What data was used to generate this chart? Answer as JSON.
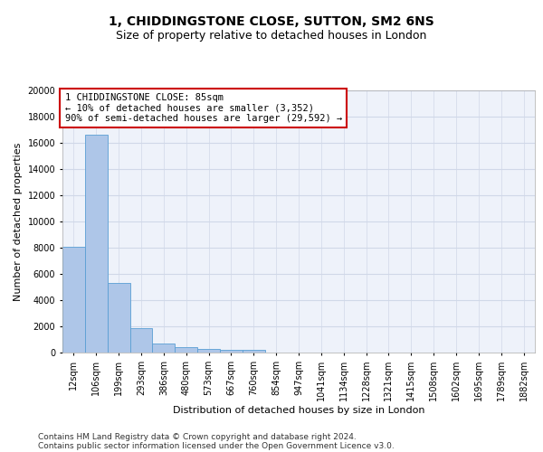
{
  "title": "1, CHIDDINGSTONE CLOSE, SUTTON, SM2 6NS",
  "subtitle": "Size of property relative to detached houses in London",
  "xlabel": "Distribution of detached houses by size in London",
  "ylabel": "Number of detached properties",
  "categories": [
    "12sqm",
    "106sqm",
    "199sqm",
    "293sqm",
    "386sqm",
    "480sqm",
    "573sqm",
    "667sqm",
    "760sqm",
    "854sqm",
    "947sqm",
    "1041sqm",
    "1134sqm",
    "1228sqm",
    "1321sqm",
    "1415sqm",
    "1508sqm",
    "1602sqm",
    "1695sqm",
    "1789sqm",
    "1882sqm"
  ],
  "values": [
    8100,
    16600,
    5300,
    1850,
    700,
    380,
    290,
    230,
    200,
    0,
    0,
    0,
    0,
    0,
    0,
    0,
    0,
    0,
    0,
    0,
    0
  ],
  "bar_color": "#aec6e8",
  "bar_edge_color": "#5a9fd4",
  "annotation_text": "1 CHIDDINGSTONE CLOSE: 85sqm\n← 10% of detached houses are smaller (3,352)\n90% of semi-detached houses are larger (29,592) →",
  "annotation_box_color": "#ffffff",
  "annotation_box_edge_color": "#cc0000",
  "ylim": [
    0,
    20000
  ],
  "yticks": [
    0,
    2000,
    4000,
    6000,
    8000,
    10000,
    12000,
    14000,
    16000,
    18000,
    20000
  ],
  "grid_color": "#d0d8e8",
  "background_color": "#eef2fa",
  "footer_line1": "Contains HM Land Registry data © Crown copyright and database right 2024.",
  "footer_line2": "Contains public sector information licensed under the Open Government Licence v3.0.",
  "title_fontsize": 10,
  "subtitle_fontsize": 9,
  "axis_label_fontsize": 8,
  "tick_fontsize": 7,
  "annotation_fontsize": 7.5,
  "footer_fontsize": 6.5
}
